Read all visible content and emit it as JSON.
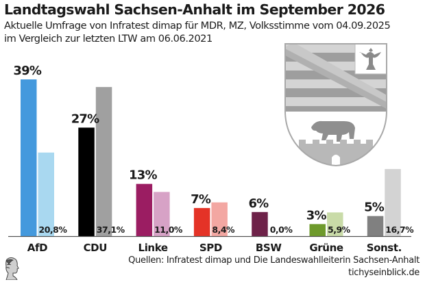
{
  "title": "Landtagswahl Sachsen-Anhalt im September 2026",
  "subtitle_line1": "Aktuelle Umfrage von Infratest dimap für MDR, MZ, Volksstimme vom 04.09.2025",
  "subtitle_line2": "im Vergleich zur letzten LTW am 06.06.2021",
  "footer": {
    "source": "Quellen: Infratest dimap und Die Landeswahlleiterin Sachsen-Anhalt",
    "site": "tichyseinblick.de"
  },
  "icons": {
    "crest": "sachsen-anhalt-coat-of-arms-icon",
    "logo": "classical-head-logo-icon"
  },
  "chart_data": {
    "type": "bar",
    "title": "Landtagswahl Sachsen-Anhalt im September 2026",
    "xlabel": "",
    "ylabel": "",
    "ylim": [
      0,
      40
    ],
    "grid": false,
    "categories": [
      "AfD",
      "CDU",
      "Linke",
      "SPD",
      "BSW",
      "Grüne",
      "Sonst."
    ],
    "series": [
      {
        "name": "Umfrage 04.09.2025",
        "values": [
          39,
          27,
          13,
          7,
          6,
          3,
          5
        ],
        "labels": [
          "39%",
          "27%",
          "13%",
          "7%",
          "6%",
          "3%",
          "5%"
        ],
        "colors": [
          "#4499dd",
          "#000000",
          "#9b1d62",
          "#e43327",
          "#6e2249",
          "#6e9a2c",
          "#808080"
        ]
      },
      {
        "name": "LTW 06.06.2021",
        "values": [
          20.8,
          37.1,
          11.0,
          8.4,
          0.0,
          5.9,
          16.7
        ],
        "labels": [
          "20,8%",
          "37,1%",
          "11,0%",
          "8,4%",
          "0,0%",
          "5,9%",
          "16,7%"
        ],
        "colors": [
          "#a9d8f0",
          "#a0a0a0",
          "#d7a2c6",
          "#f3a7a2",
          "#d9b7c8",
          "#c9dba8",
          "#d3d3d3"
        ]
      }
    ]
  }
}
